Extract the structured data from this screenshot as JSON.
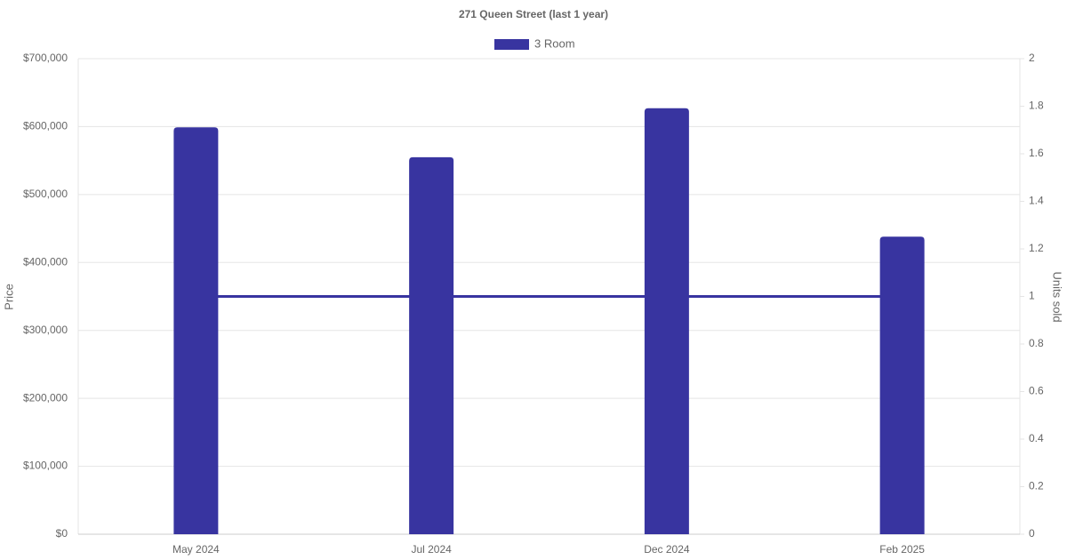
{
  "chart_data": {
    "type": "bar-line",
    "title": "271 Queen Street (last 1 year)",
    "y_label": "Price",
    "y2_label": "Units sold",
    "categories": [
      "May 2024",
      "Jul 2024",
      "Dec 2024",
      "Feb 2025"
    ],
    "series": [
      {
        "name": "3 Room",
        "type": "bar",
        "color": "#3834a0",
        "values": [
          599000,
          555000,
          627000,
          438000
        ]
      },
      {
        "type": "line",
        "axis": "y2",
        "color": "#3834a0",
        "values": [
          1,
          1,
          1,
          1
        ]
      }
    ],
    "ylim": [
      0,
      700000
    ],
    "yticks": [
      {
        "value": 0,
        "label": "$0"
      },
      {
        "value": 100000,
        "label": "$100,000"
      },
      {
        "value": 200000,
        "label": "$200,000"
      },
      {
        "value": 300000,
        "label": "$300,000"
      },
      {
        "value": 400000,
        "label": "$400,000"
      },
      {
        "value": 500000,
        "label": "$500,000"
      },
      {
        "value": 600000,
        "label": "$600,000"
      },
      {
        "value": 700000,
        "label": "$700,000"
      }
    ],
    "y2lim": [
      0,
      2
    ],
    "y2ticks": [
      0,
      0.2,
      0.4,
      0.6,
      0.8,
      1,
      1.2,
      1.4,
      1.6,
      1.8,
      2
    ],
    "grid": true,
    "legend": "top"
  }
}
